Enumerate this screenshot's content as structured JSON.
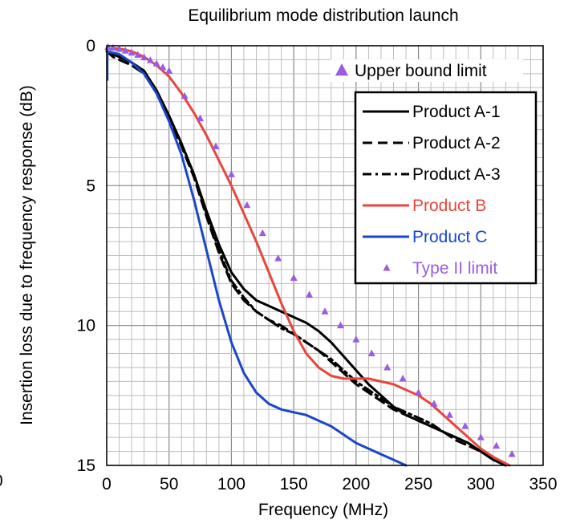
{
  "chart_data": {
    "type": "line",
    "title": "Equilibrium mode distribution launch",
    "xlabel": "Frequency  (MHz)",
    "ylabel": "Insertion loss due to frequency response  (dB)",
    "stray_label": "0",
    "xlim": [
      0,
      350
    ],
    "ylim": [
      0,
      15
    ],
    "y_inverted": true,
    "x_ticks": [
      "0",
      "50",
      "100",
      "150",
      "200",
      "250",
      "300",
      "350"
    ],
    "y_ticks": [
      "0",
      "5",
      "10",
      "15"
    ],
    "grid": true,
    "legend_placement": "right",
    "top_legend": {
      "label": "Upper bound limit",
      "marker": "triangle",
      "color": "#9A5CE0"
    },
    "series": [
      {
        "name": "Product A-1",
        "color": "#000000",
        "style": "solid",
        "x": [
          0,
          5,
          10,
          20,
          30,
          40,
          50,
          60,
          70,
          80,
          90,
          100,
          110,
          120,
          130,
          140,
          150,
          160,
          170,
          180,
          190,
          200,
          210,
          220,
          230,
          240,
          250,
          260,
          270,
          280,
          290,
          300,
          310,
          320
        ],
        "y": [
          0.2,
          0.3,
          0.4,
          0.6,
          0.9,
          1.6,
          2.5,
          3.5,
          4.6,
          5.9,
          7.1,
          8.1,
          8.7,
          9.1,
          9.3,
          9.5,
          9.7,
          9.9,
          10.2,
          10.6,
          11.1,
          11.6,
          12.1,
          12.5,
          12.9,
          13.2,
          13.4,
          13.6,
          13.8,
          14.0,
          14.2,
          14.5,
          14.8,
          15.0
        ]
      },
      {
        "name": "Product A-2",
        "color": "#000000",
        "style": "dashed",
        "x": [
          0,
          5,
          10,
          20,
          30,
          40,
          50,
          60,
          70,
          80,
          90,
          100,
          110,
          120,
          130,
          140,
          150,
          160,
          170,
          180,
          190,
          200,
          210,
          220,
          230,
          240,
          250,
          260,
          270,
          280,
          290,
          300,
          310,
          320
        ],
        "y": [
          0.2,
          0.4,
          0.5,
          0.7,
          1.0,
          1.7,
          2.6,
          3.6,
          4.7,
          6.1,
          7.4,
          8.5,
          9.1,
          9.5,
          9.8,
          10.0,
          10.3,
          10.6,
          10.9,
          11.3,
          11.7,
          12.1,
          12.4,
          12.7,
          13.0,
          13.2,
          13.4,
          13.6,
          13.8,
          14.1,
          14.3,
          14.5,
          14.8,
          15.0
        ]
      },
      {
        "name": "Product A-3",
        "color": "#000000",
        "style": "dashdot",
        "x": [
          0,
          5,
          10,
          20,
          30,
          40,
          50,
          60,
          70,
          80,
          90,
          100,
          110,
          120,
          130,
          140,
          150,
          160,
          170,
          180,
          190,
          200,
          210,
          220,
          230,
          240,
          250,
          260,
          270,
          280,
          290,
          300,
          310,
          320
        ],
        "y": [
          0.2,
          0.3,
          0.4,
          0.6,
          0.9,
          1.6,
          2.5,
          3.5,
          4.6,
          6.0,
          7.3,
          8.4,
          9.0,
          9.5,
          9.8,
          10.1,
          10.3,
          10.6,
          10.9,
          11.2,
          11.6,
          12.0,
          12.3,
          12.6,
          12.9,
          13.1,
          13.3,
          13.5,
          13.8,
          14.0,
          14.2,
          14.5,
          14.8,
          15.0
        ]
      },
      {
        "name": "Product B",
        "color": "#E8453C",
        "style": "solid",
        "x": [
          0,
          10,
          20,
          30,
          40,
          50,
          60,
          70,
          80,
          90,
          100,
          110,
          120,
          130,
          140,
          150,
          160,
          170,
          180,
          190,
          200,
          210,
          220,
          230,
          240,
          250,
          260,
          270,
          280,
          290,
          300,
          310,
          323
        ],
        "y": [
          0.1,
          0.1,
          0.2,
          0.4,
          0.7,
          1.1,
          1.7,
          2.4,
          3.2,
          4.1,
          5.0,
          6.0,
          7.0,
          8.1,
          9.2,
          10.2,
          11.0,
          11.5,
          11.8,
          11.9,
          11.9,
          11.9,
          12.0,
          12.1,
          12.3,
          12.5,
          12.8,
          13.2,
          13.6,
          14.0,
          14.4,
          14.7,
          15.0
        ]
      },
      {
        "name": "Product C",
        "color": "#1A47C8",
        "style": "solid",
        "x": [
          0,
          10,
          20,
          30,
          40,
          50,
          60,
          70,
          80,
          90,
          100,
          110,
          120,
          130,
          140,
          150,
          160,
          170,
          180,
          190,
          200,
          210,
          220,
          230,
          240
        ],
        "y": [
          0.2,
          0.3,
          0.6,
          1.0,
          1.7,
          2.7,
          3.9,
          5.5,
          7.3,
          9.1,
          10.6,
          11.7,
          12.4,
          12.8,
          13.0,
          13.1,
          13.2,
          13.4,
          13.6,
          13.9,
          14.2,
          14.4,
          14.6,
          14.8,
          15.0
        ]
      },
      {
        "name": "Type II limit",
        "color": "#9A5CE0",
        "style": "triangles",
        "x": [
          1,
          5,
          10,
          15,
          20,
          25,
          30,
          35,
          40,
          45,
          50,
          62.5,
          75,
          87.5,
          100,
          112.5,
          125,
          137.5,
          150,
          162.5,
          175,
          187.5,
          200,
          212.5,
          225,
          237.5,
          250,
          262.5,
          275,
          287.5,
          300,
          312.5,
          325
        ],
        "y": [
          0.05,
          0.08,
          0.12,
          0.18,
          0.25,
          0.33,
          0.42,
          0.52,
          0.64,
          0.77,
          0.9,
          1.8,
          2.6,
          3.6,
          4.6,
          5.7,
          6.7,
          7.6,
          8.3,
          8.9,
          9.5,
          10.0,
          10.5,
          11.0,
          11.5,
          11.9,
          12.4,
          12.8,
          13.2,
          13.6,
          14.0,
          14.3,
          14.6
        ]
      }
    ]
  }
}
